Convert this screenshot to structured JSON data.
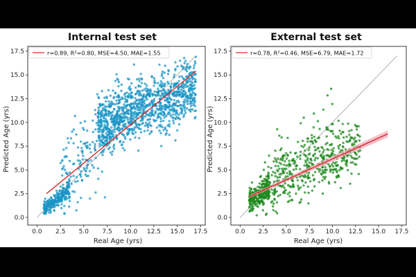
{
  "chart_data": [
    {
      "type": "scatter",
      "title": "Internal test set",
      "xlabel": "Real Age (yrs)",
      "ylabel": "Predicted Age (yrs)",
      "xlim": [
        -1.0,
        18.0
      ],
      "ylim": [
        -0.8,
        18.0
      ],
      "xticks": [
        "0.0",
        "2.5",
        "5.0",
        "7.5",
        "10.0",
        "12.5",
        "15.0",
        "17.5"
      ],
      "yticks": [
        "0.0",
        "2.5",
        "5.0",
        "7.5",
        "10.0",
        "12.5",
        "15.0",
        "17.5"
      ],
      "legend_text": "r=0.89, R²=0.80, MSE=4.50, MAE=1.55",
      "legend_position": "top-left",
      "point_color": "#1b95c6",
      "fit_color": "#d42a2a",
      "identity_color": "#9a9a9a",
      "fit_line": {
        "x": [
          1.0,
          17.0
        ],
        "y": [
          2.5,
          15.4
        ]
      },
      "identity_line": {
        "x": [
          0.0,
          17.0
        ],
        "y": [
          0.0,
          17.0
        ]
      },
      "series": [
        {
          "type": "cluster",
          "x_range": [
            0.7,
            3.5
          ],
          "slope": 0.78,
          "intercept": 0.25,
          "noise": 0.35,
          "count": 260
        },
        {
          "type": "cluster",
          "x_range": [
            2.5,
            8.0
          ],
          "slope": 0.95,
          "intercept": 1.5,
          "noise": 2.1,
          "count": 180
        },
        {
          "type": "cluster",
          "x_range": [
            6.5,
            17.0
          ],
          "slope": 0.38,
          "intercept": 7.2,
          "noise": 1.5,
          "count": 1100
        }
      ]
    },
    {
      "type": "scatter",
      "title": "External test set",
      "xlabel": "Real Age (yrs)",
      "ylabel": "Predicted Age (yrs)",
      "xlim": [
        -1.0,
        18.0
      ],
      "ylim": [
        -0.8,
        18.0
      ],
      "xticks": [
        "0.0",
        "2.5",
        "5.0",
        "7.5",
        "10.0",
        "12.5",
        "15.0",
        "17.5"
      ],
      "yticks": [
        "0.0",
        "2.5",
        "5.0",
        "7.5",
        "10.0",
        "12.5",
        "15.0",
        "17.5"
      ],
      "legend_text": "r=0.78, R²=0.46, MSE=6.79, MAE=1.72",
      "legend_position": "top-left",
      "point_color": "#1e8a1e",
      "fit_color": "#d42a2a",
      "band_color": "#f2a3b3",
      "identity_color": "#9a9a9a",
      "fit_line": {
        "x": [
          1.0,
          16.0
        ],
        "y": [
          2.2,
          8.8
        ]
      },
      "identity_line": {
        "x": [
          0.0,
          17.0
        ],
        "y": [
          0.0,
          17.0
        ]
      },
      "series": [
        {
          "type": "cluster",
          "x_range": [
            1.0,
            3.2
          ],
          "slope": 0.6,
          "intercept": 1.2,
          "noise": 0.6,
          "count": 280
        },
        {
          "type": "cluster",
          "x_range": [
            2.5,
            13.0
          ],
          "slope": 0.42,
          "intercept": 2.3,
          "noise": 1.5,
          "count": 420
        },
        {
          "type": "cluster",
          "x_range": [
            3.5,
            10.0
          ],
          "slope": 0.7,
          "intercept": 1.6,
          "noise": 1.8,
          "count": 90
        }
      ]
    }
  ]
}
